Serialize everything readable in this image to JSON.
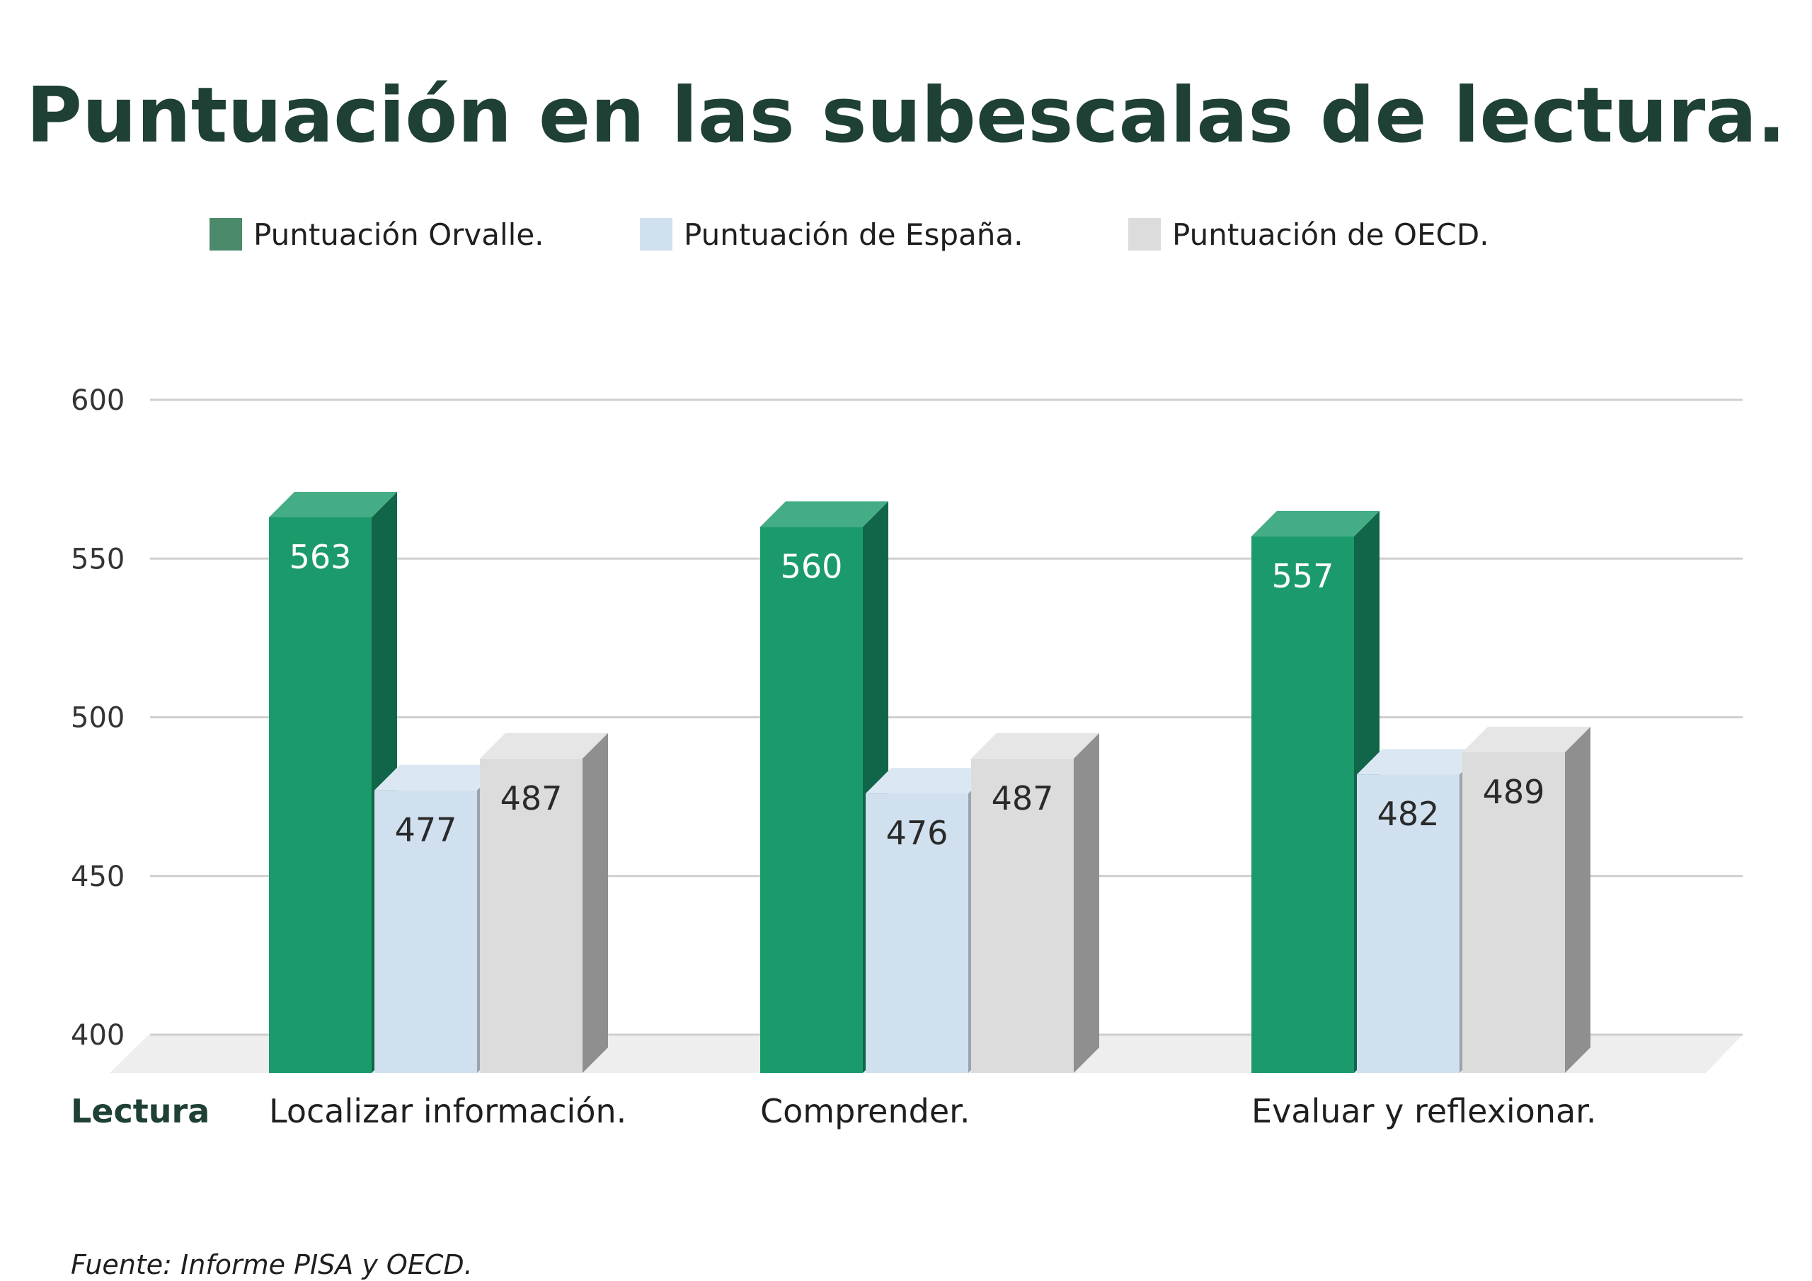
{
  "chart_data": {
    "type": "bar",
    "title": "Puntuación en las subescalas de lectura.",
    "xlabel": "Lectura",
    "ylabel": "",
    "ylim": [
      400,
      600
    ],
    "yticks": [
      400,
      450,
      500,
      550,
      600
    ],
    "grid": true,
    "legend_position": "top",
    "categories": [
      "Localizar información.",
      "Comprender.",
      "Evaluar y reflexionar."
    ],
    "series": [
      {
        "name": "Puntuación Orvalle.",
        "values": [
          563,
          560,
          557
        ],
        "color": "#1b9b6b",
        "side_color": "#11664a",
        "top_color": "#45ad86",
        "label_color": "#ffffff",
        "legend_color": "#4a8a6a"
      },
      {
        "name": "Puntuación de España.",
        "values": [
          477,
          476,
          482
        ],
        "color": "#d0e0ef",
        "side_color": "#9aa3ad",
        "top_color": "#dbe8f4",
        "label_color": "#2a2a2a",
        "legend_color": "#d0e0ef"
      },
      {
        "name": "Puntuación de OECD.",
        "values": [
          487,
          487,
          489
        ],
        "color": "#dcdcdc",
        "side_color": "#8f8f8f",
        "top_color": "#e6e6e6",
        "label_color": "#2a2a2a",
        "legend_color": "#dcdcdc"
      }
    ],
    "source": "Fuente: Informe PISA y OECD."
  }
}
